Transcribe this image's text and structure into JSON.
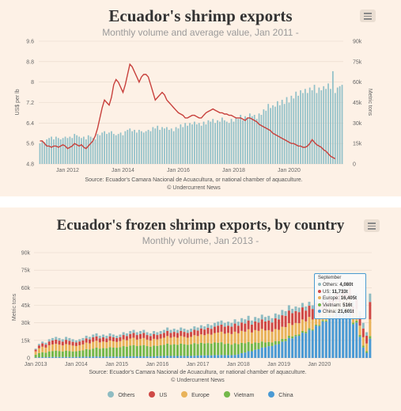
{
  "chart_data": [
    {
      "type": "line+bar",
      "title": "Ecuador's shrimp exports",
      "subtitle": "Monthly volume and average value, Jan 2011 -",
      "y_left_label": "US$ per lb",
      "y_right_label": "Metric tons",
      "y_left_ticks": [
        "4.8",
        "5.6",
        "6.4",
        "7.2",
        "8",
        "8.8",
        "9.6"
      ],
      "y_left_range": [
        4.8,
        9.6
      ],
      "y_right_ticks": [
        "0",
        "15k",
        "30k",
        "45k",
        "60k",
        "75k",
        "90k"
      ],
      "y_right_range": [
        0,
        90000
      ],
      "x_tick_labels": [
        "Jan 2012",
        "Jan 2014",
        "Jan 2016",
        "Jan 2018",
        "Jan 2020"
      ],
      "start_year": 2011,
      "bar_color": "#92c1c9",
      "line_color": "#c8403c",
      "volume_tons": [
        15000,
        17000,
        16000,
        18000,
        19000,
        20000,
        18000,
        20000,
        19000,
        18000,
        19000,
        20000,
        19000,
        20000,
        19000,
        22000,
        21000,
        20000,
        19000,
        20000,
        18000,
        21000,
        20000,
        19000,
        18000,
        22000,
        21000,
        23000,
        24000,
        22000,
        23000,
        24000,
        22000,
        21000,
        22000,
        23000,
        21000,
        24000,
        25000,
        26000,
        24000,
        25000,
        23000,
        25000,
        24000,
        23000,
        24000,
        25000,
        24000,
        27000,
        26000,
        28000,
        25000,
        27000,
        26000,
        27000,
        25000,
        26000,
        24000,
        27000,
        26000,
        29000,
        27000,
        30000,
        28000,
        30000,
        29000,
        31000,
        29000,
        30000,
        28000,
        31000,
        29000,
        32000,
        31000,
        33000,
        30000,
        32000,
        31000,
        34000,
        32000,
        31000,
        30000,
        33000,
        31000,
        34000,
        33000,
        36000,
        32000,
        35000,
        34000,
        37000,
        35000,
        36000,
        33000,
        37000,
        36000,
        40000,
        39000,
        44000,
        41000,
        43000,
        42000,
        46000,
        43000,
        47000,
        44000,
        49000,
        45000,
        50000,
        48000,
        53000,
        50000,
        54000,
        52000,
        55000,
        52000,
        56000,
        54000,
        58000,
        52000,
        56000,
        54000,
        57000,
        55000,
        59000,
        55000,
        68000,
        52000,
        56000,
        57000,
        58000
      ],
      "value_usd_per_lb": [
        5.7,
        5.7,
        5.6,
        5.5,
        5.5,
        5.45,
        5.5,
        5.5,
        5.45,
        5.5,
        5.55,
        5.5,
        5.4,
        5.45,
        5.5,
        5.6,
        5.55,
        5.5,
        5.55,
        5.45,
        5.4,
        5.5,
        5.6,
        5.7,
        5.9,
        6.2,
        6.6,
        7.0,
        7.3,
        7.2,
        7.1,
        7.4,
        7.9,
        8.1,
        8.0,
        7.8,
        7.6,
        7.9,
        8.3,
        8.7,
        8.6,
        8.4,
        8.2,
        8.0,
        8.2,
        8.3,
        8.3,
        8.2,
        7.9,
        7.6,
        7.3,
        7.4,
        7.5,
        7.6,
        7.5,
        7.3,
        7.2,
        7.1,
        7.0,
        6.9,
        6.8,
        6.75,
        6.7,
        6.6,
        6.6,
        6.65,
        6.7,
        6.7,
        6.65,
        6.6,
        6.6,
        6.7,
        6.8,
        6.85,
        6.9,
        6.95,
        6.9,
        6.85,
        6.8,
        6.8,
        6.75,
        6.75,
        6.7,
        6.7,
        6.65,
        6.6,
        6.6,
        6.6,
        6.55,
        6.5,
        6.6,
        6.6,
        6.55,
        6.5,
        6.45,
        6.35,
        6.3,
        6.25,
        6.2,
        6.15,
        6.1,
        6.0,
        5.95,
        5.9,
        5.85,
        5.8,
        5.75,
        5.7,
        5.65,
        5.6,
        5.6,
        5.55,
        5.5,
        5.5,
        5.45,
        5.45,
        5.5,
        5.6,
        5.75,
        5.65,
        5.55,
        5.5,
        5.45,
        5.35,
        5.3,
        5.2,
        5.1,
        5.05,
        5.0
      ]
    },
    {
      "type": "stacked_bar",
      "title": "Ecuador's frozen shrimp exports, by country",
      "subtitle": "Monthly volume, Jan 2013 -",
      "y_label": "Metric tons",
      "y_ticks": [
        "0",
        "15k",
        "30k",
        "45k",
        "60k",
        "75k",
        "90k"
      ],
      "y_range": [
        0,
        90000
      ],
      "x_tick_labels": [
        "Jan 2013",
        "Jan 2014",
        "Jan 2015",
        "Jan 2016",
        "Jan 2017",
        "Jan 2018",
        "Jan 2019",
        "Jan 2020"
      ],
      "start_year": 2013,
      "series": [
        {
          "name": "Others",
          "color": "#8fbcc2"
        },
        {
          "name": "US",
          "color": "#cf4946"
        },
        {
          "name": "Europe",
          "color": "#e9b35a"
        },
        {
          "name": "Vietnam",
          "color": "#74b84a"
        },
        {
          "name": "China",
          "color": "#4a9ad4"
        }
      ],
      "totals_tons": [
        8000,
        12000,
        14000,
        13000,
        16000,
        17000,
        18000,
        17000,
        16000,
        18000,
        17000,
        16000,
        15000,
        16000,
        17000,
        19000,
        18000,
        20000,
        21000,
        19000,
        20000,
        19000,
        21000,
        20000,
        19000,
        20000,
        22000,
        21000,
        23000,
        24000,
        22000,
        23000,
        24000,
        22000,
        21000,
        23000,
        22000,
        23000,
        24000,
        26000,
        24000,
        25000,
        24000,
        26000,
        25000,
        24000,
        25000,
        27000,
        26000,
        28000,
        27000,
        29000,
        28000,
        30000,
        31000,
        32000,
        30000,
        31000,
        30000,
        33000,
        31000,
        34000,
        33000,
        36000,
        32000,
        35000,
        34000,
        37000,
        35000,
        36000,
        34000,
        38000,
        37000,
        41000,
        40000,
        45000,
        42000,
        44000,
        43000,
        47000,
        44000,
        48000,
        45000,
        50000,
        47000,
        52000,
        50000,
        56000,
        53000,
        58000,
        56000,
        60000,
        57000,
        62000,
        48000,
        55000,
        40000,
        30000,
        22000,
        55000
      ],
      "china_share": [
        0.05,
        0.05,
        0.05,
        0.05,
        0.05,
        0.05,
        0.05,
        0.05,
        0.05,
        0.05,
        0.05,
        0.05,
        0.06,
        0.06,
        0.06,
        0.06,
        0.06,
        0.06,
        0.06,
        0.06,
        0.06,
        0.06,
        0.06,
        0.06,
        0.06,
        0.06,
        0.06,
        0.06,
        0.06,
        0.06,
        0.06,
        0.06,
        0.06,
        0.06,
        0.06,
        0.06,
        0.07,
        0.07,
        0.07,
        0.07,
        0.07,
        0.07,
        0.07,
        0.07,
        0.07,
        0.07,
        0.07,
        0.07,
        0.08,
        0.08,
        0.08,
        0.08,
        0.08,
        0.08,
        0.08,
        0.08,
        0.08,
        0.08,
        0.08,
        0.08,
        0.1,
        0.12,
        0.14,
        0.16,
        0.18,
        0.2,
        0.22,
        0.24,
        0.26,
        0.28,
        0.3,
        0.3,
        0.32,
        0.34,
        0.36,
        0.38,
        0.4,
        0.42,
        0.44,
        0.46,
        0.48,
        0.5,
        0.52,
        0.55,
        0.58,
        0.6,
        0.62,
        0.64,
        0.66,
        0.68,
        0.7,
        0.7,
        0.7,
        0.68,
        0.6,
        0.55,
        0.45,
        0.3,
        0.2,
        0.3
      ],
      "vietnam_share": [
        0.3,
        0.3,
        0.3,
        0.3,
        0.3,
        0.3,
        0.3,
        0.3,
        0.3,
        0.3,
        0.3,
        0.3,
        0.32,
        0.32,
        0.32,
        0.34,
        0.34,
        0.34,
        0.36,
        0.36,
        0.36,
        0.38,
        0.38,
        0.38,
        0.4,
        0.4,
        0.4,
        0.4,
        0.4,
        0.4,
        0.4,
        0.4,
        0.4,
        0.4,
        0.4,
        0.4,
        0.4,
        0.4,
        0.4,
        0.4,
        0.4,
        0.4,
        0.4,
        0.4,
        0.4,
        0.4,
        0.4,
        0.4,
        0.38,
        0.38,
        0.38,
        0.36,
        0.36,
        0.36,
        0.34,
        0.34,
        0.32,
        0.32,
        0.3,
        0.3,
        0.28,
        0.26,
        0.24,
        0.22,
        0.2,
        0.18,
        0.16,
        0.14,
        0.12,
        0.1,
        0.09,
        0.08,
        0.07,
        0.06,
        0.05,
        0.04,
        0.04,
        0.03,
        0.03,
        0.03,
        0.03,
        0.03,
        0.02,
        0.02,
        0.02,
        0.02,
        0.02,
        0.02,
        0.02,
        0.02,
        0.02,
        0.02,
        0.02,
        0.02,
        0.03,
        0.03,
        0.04,
        0.05,
        0.06,
        0.04
      ],
      "europe_share": [
        0.35,
        0.34,
        0.34,
        0.33,
        0.33,
        0.33,
        0.32,
        0.32,
        0.32,
        0.31,
        0.31,
        0.31,
        0.3,
        0.3,
        0.3,
        0.29,
        0.29,
        0.29,
        0.28,
        0.28,
        0.28,
        0.27,
        0.27,
        0.27,
        0.26,
        0.26,
        0.26,
        0.26,
        0.26,
        0.26,
        0.25,
        0.25,
        0.25,
        0.25,
        0.25,
        0.25,
        0.25,
        0.25,
        0.25,
        0.25,
        0.25,
        0.25,
        0.25,
        0.25,
        0.25,
        0.25,
        0.25,
        0.25,
        0.26,
        0.26,
        0.26,
        0.27,
        0.27,
        0.27,
        0.28,
        0.28,
        0.29,
        0.29,
        0.3,
        0.3,
        0.3,
        0.3,
        0.3,
        0.3,
        0.3,
        0.3,
        0.3,
        0.29,
        0.29,
        0.28,
        0.27,
        0.27,
        0.26,
        0.25,
        0.25,
        0.24,
        0.23,
        0.23,
        0.22,
        0.21,
        0.2,
        0.2,
        0.19,
        0.18,
        0.17,
        0.17,
        0.16,
        0.16,
        0.15,
        0.14,
        0.14,
        0.14,
        0.14,
        0.15,
        0.16,
        0.18,
        0.2,
        0.24,
        0.3,
        0.26
      ],
      "us_share": [
        0.2,
        0.2,
        0.2,
        0.2,
        0.2,
        0.2,
        0.2,
        0.2,
        0.2,
        0.2,
        0.2,
        0.2,
        0.2,
        0.2,
        0.2,
        0.19,
        0.19,
        0.19,
        0.18,
        0.18,
        0.18,
        0.17,
        0.17,
        0.17,
        0.17,
        0.17,
        0.17,
        0.17,
        0.17,
        0.17,
        0.18,
        0.18,
        0.18,
        0.18,
        0.18,
        0.18,
        0.17,
        0.17,
        0.17,
        0.17,
        0.17,
        0.17,
        0.17,
        0.17,
        0.17,
        0.17,
        0.17,
        0.17,
        0.18,
        0.18,
        0.18,
        0.18,
        0.18,
        0.18,
        0.19,
        0.19,
        0.2,
        0.2,
        0.21,
        0.21,
        0.21,
        0.21,
        0.21,
        0.21,
        0.21,
        0.21,
        0.21,
        0.22,
        0.22,
        0.23,
        0.23,
        0.24,
        0.24,
        0.24,
        0.24,
        0.24,
        0.24,
        0.23,
        0.22,
        0.22,
        0.21,
        0.2,
        0.2,
        0.19,
        0.18,
        0.16,
        0.15,
        0.14,
        0.13,
        0.12,
        0.11,
        0.11,
        0.11,
        0.12,
        0.13,
        0.15,
        0.2,
        0.25,
        0.3,
        0.27
      ],
      "tooltip": {
        "header": "September",
        "rows": [
          {
            "label": "Others",
            "value": "4,080t",
            "color": "#8fbcc2"
          },
          {
            "label": "US",
            "value": "11,733t",
            "color": "#cf4946"
          },
          {
            "label": "Europe",
            "value": "16,405t",
            "color": "#e9b35a"
          },
          {
            "label": "Vietnam",
            "value": "516t",
            "color": "#74b84a"
          },
          {
            "label": "China",
            "value": "21,601t",
            "color": "#4a9ad4"
          }
        ]
      }
    }
  ],
  "source_1": "Source: Ecuador's Camara Nacional de Acuacultura, or national chamber of aquaculture.",
  "source_2": "© Undercurrent News",
  "source_3": "Source: Ecuador's Camara Nacional de Acuacultura, or national chamber of aquaculture.",
  "source_4": "© Undercurrent News",
  "legend": [
    {
      "label": "Others",
      "color": "#8fbcc2"
    },
    {
      "label": "US",
      "color": "#cf4946"
    },
    {
      "label": "Europe",
      "color": "#e9b35a"
    },
    {
      "label": "Vietnam",
      "color": "#74b84a"
    },
    {
      "label": "China",
      "color": "#4a9ad4"
    }
  ]
}
